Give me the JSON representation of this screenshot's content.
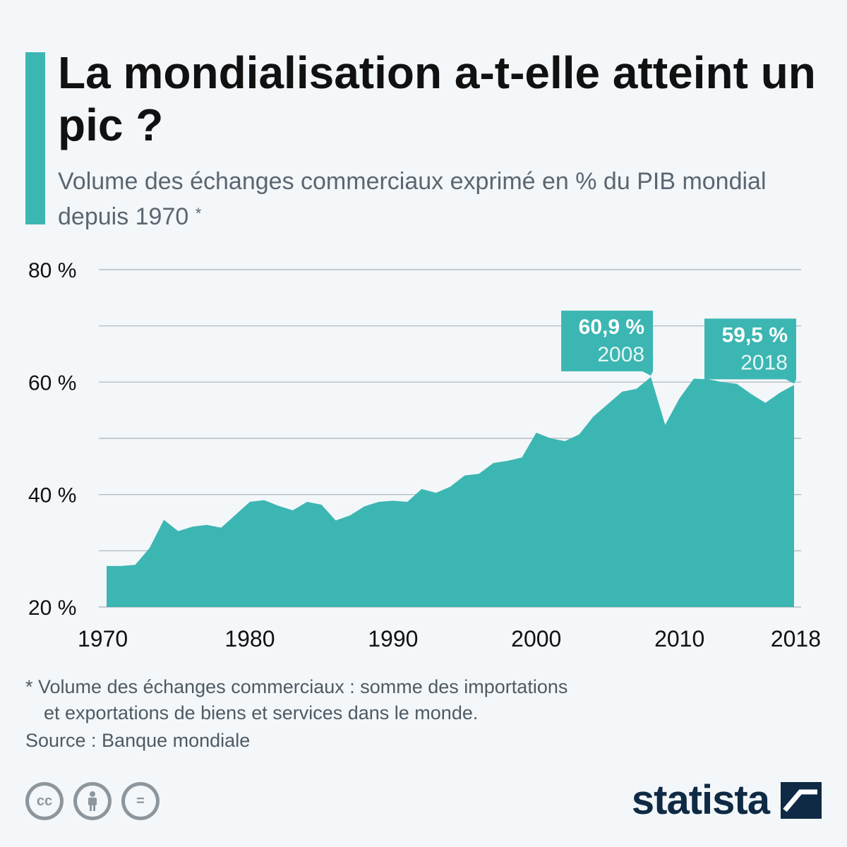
{
  "header": {
    "title": "La mondialisation a-t-elle atteint un pic ?",
    "subtitle": "Volume des échanges commerciaux exprimé en % du PIB mondial depuis 1970",
    "subtitle_mark": "*"
  },
  "chart_data": {
    "type": "area",
    "title": "La mondialisation a-t-elle atteint un pic ?",
    "xlabel": "",
    "ylabel": "",
    "x": [
      1970,
      1971,
      1972,
      1973,
      1974,
      1975,
      1976,
      1977,
      1978,
      1979,
      1980,
      1981,
      1982,
      1983,
      1984,
      1985,
      1986,
      1987,
      1988,
      1989,
      1990,
      1991,
      1992,
      1993,
      1994,
      1995,
      1996,
      1997,
      1998,
      1999,
      2000,
      2001,
      2002,
      2003,
      2004,
      2005,
      2006,
      2007,
      2008,
      2009,
      2010,
      2011,
      2012,
      2013,
      2014,
      2015,
      2016,
      2017,
      2018
    ],
    "series": [
      {
        "values": [
          27.3,
          27.3,
          27.5,
          30.5,
          35.5,
          33.5,
          34.3,
          34.6,
          34.1,
          36.4,
          38.7,
          39.0,
          38.0,
          37.2,
          38.7,
          38.2,
          35.4,
          36.3,
          37.9,
          38.7,
          38.9,
          38.7,
          41.0,
          40.3,
          41.4,
          43.4,
          43.7,
          45.6,
          46.0,
          46.6,
          51.0,
          50.0,
          49.5,
          50.7,
          53.9,
          56.1,
          58.3,
          58.8,
          60.9,
          52.4,
          57.1,
          60.6,
          60.5,
          60.0,
          59.7,
          57.9,
          56.3,
          58.1,
          59.5
        ],
        "color": "#3cb6b2"
      }
    ],
    "ylim": [
      20,
      80
    ],
    "xlim": [
      1970,
      2018
    ],
    "y_ticks": [
      20,
      40,
      60,
      80
    ],
    "y_tick_labels": [
      "20 %",
      "40 %",
      "60 %",
      "80 %"
    ],
    "minor_grid": [
      30,
      50,
      70
    ],
    "x_ticks": [
      1970,
      1980,
      1990,
      2000,
      2010,
      2018
    ],
    "x_tick_labels": [
      "1970",
      "1980",
      "1990",
      "2000",
      "2010",
      "2018"
    ],
    "grid": true,
    "annotations": [
      {
        "year": 2008,
        "value": 60.9,
        "value_label": "60,9 %",
        "year_label": "2008",
        "align": "right"
      },
      {
        "year": 2018,
        "value": 59.5,
        "value_label": "59,5 %",
        "year_label": "2018",
        "align": "right"
      }
    ]
  },
  "footnote": {
    "line1": "* Volume des échanges commerciaux : somme des importations",
    "line2": "et exportations de biens et services dans le monde."
  },
  "source": "Source : Banque mondiale",
  "license_icons": [
    "cc-icon",
    "attribution-icon",
    "no-derivatives-icon"
  ],
  "license_glyphs": [
    "cc",
    "",
    "="
  ],
  "brand": {
    "name": "statista",
    "color": "#0e2a44"
  },
  "colors": {
    "accent": "#3cb6b2",
    "grid": "#aab1b8",
    "text": "#111111"
  }
}
